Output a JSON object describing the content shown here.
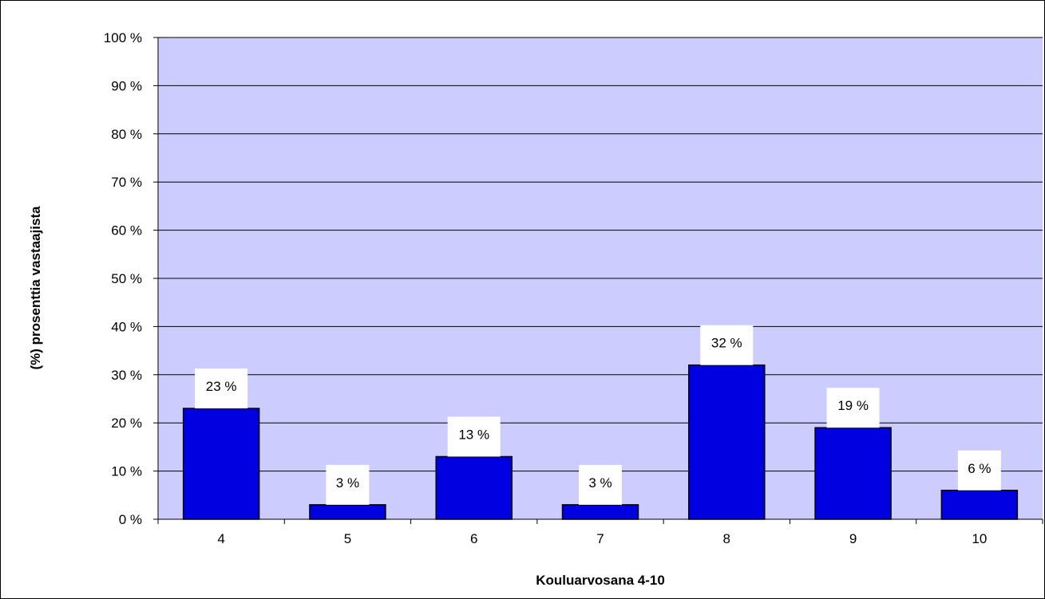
{
  "chart_data": {
    "type": "bar",
    "xlabel": "Kouluarvosana 4-10",
    "ylabel": "(%) prosenttia vastaajista",
    "categories": [
      "4",
      "5",
      "6",
      "7",
      "8",
      "9",
      "10"
    ],
    "values": [
      23,
      3,
      13,
      3,
      32,
      19,
      6
    ],
    "data_labels": [
      "23 %",
      "3 %",
      "13 %",
      "3 %",
      "32 %",
      "19 %",
      "6 %"
    ],
    "ylim": [
      0,
      100
    ],
    "yticks": [
      0,
      10,
      20,
      30,
      40,
      50,
      60,
      70,
      80,
      90,
      100
    ],
    "ytick_labels": [
      "0 %",
      "10 %",
      "20 %",
      "30 %",
      "40 %",
      "50 %",
      "60 %",
      "70 %",
      "80 %",
      "90 %",
      "100 %"
    ],
    "grid": true,
    "legend": "none",
    "colors": {
      "plot_background": "#CCCCFF",
      "bar_fill": "#0000E0",
      "bar_stroke": "#000000",
      "gridline": "#000000",
      "label_background": "#FFFFFF"
    }
  }
}
